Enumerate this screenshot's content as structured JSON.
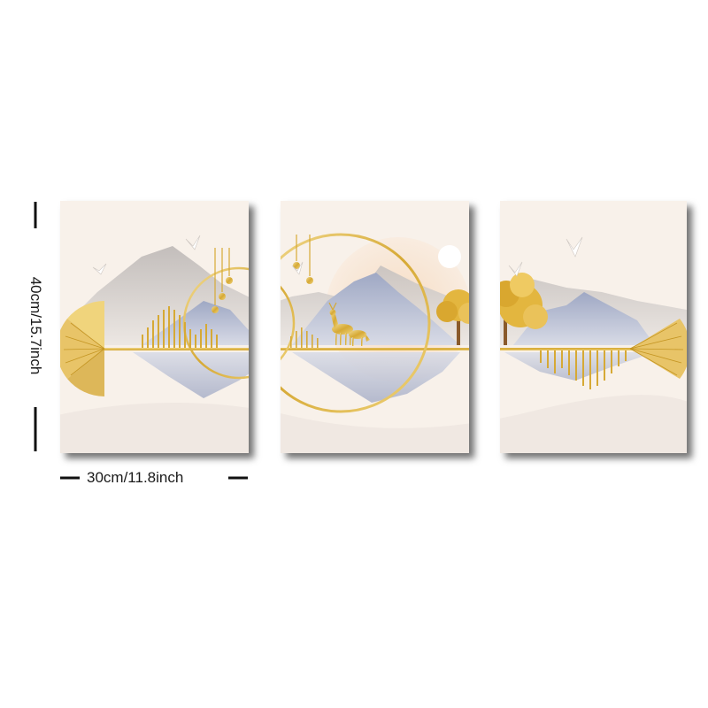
{
  "dimensions": {
    "height_label": "40cm/15.7inch",
    "width_label": "30cm/11.8inch"
  },
  "palette": {
    "canvas": "#f8f1ea",
    "mountain_grey": "#c9c5c4",
    "mountain_blue": "#aab1c9",
    "gold": "#d6a935",
    "gold_light": "#edd388",
    "sun_peach": "#f6e0c9"
  },
  "panels": [
    {
      "name": "left-panel",
      "motifs": [
        "mountains",
        "gold-circle",
        "hanging-drops",
        "fan",
        "birds"
      ]
    },
    {
      "name": "center-panel",
      "motifs": [
        "mountains",
        "gold-circle",
        "deer",
        "golden-tree",
        "sun"
      ]
    },
    {
      "name": "right-panel",
      "motifs": [
        "mountains",
        "golden-tree",
        "fan",
        "birds"
      ]
    }
  ]
}
